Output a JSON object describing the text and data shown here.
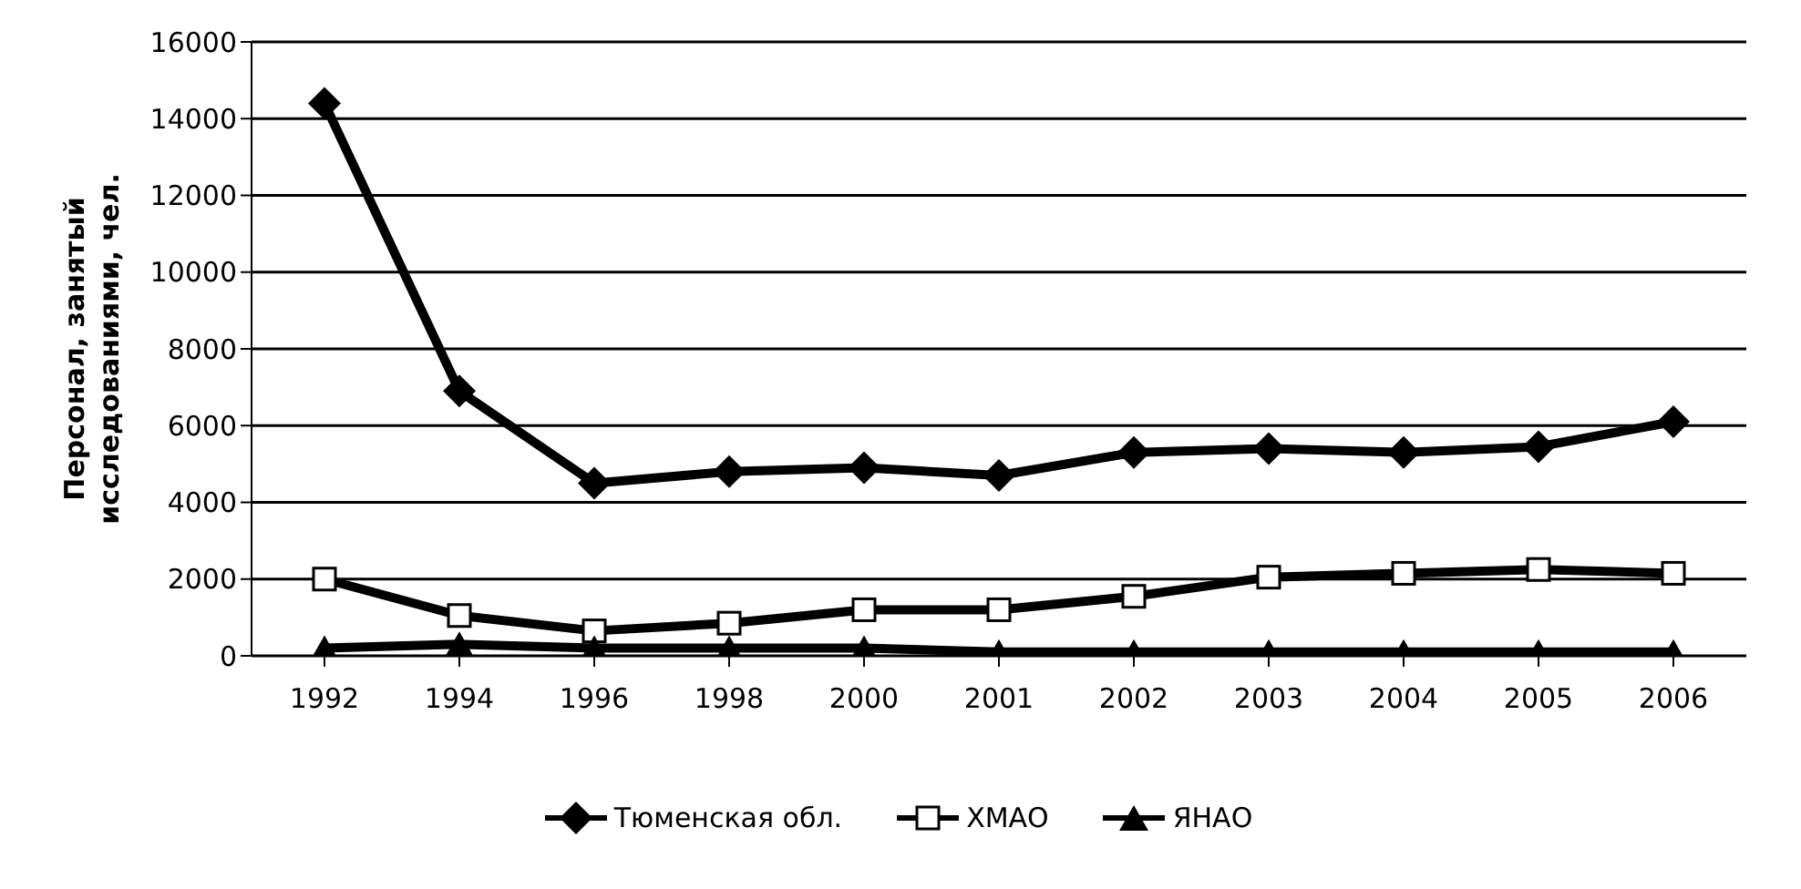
{
  "chart_data": {
    "type": "line",
    "ylabel": "Персонал, занятый исследованиями, чел.",
    "categories": [
      "1992",
      "1994",
      "1996",
      "1998",
      "2000",
      "2001",
      "2002",
      "2003",
      "2004",
      "2005",
      "2006"
    ],
    "ylim": [
      0,
      16000
    ],
    "yticks": [
      0,
      2000,
      4000,
      6000,
      8000,
      10000,
      12000,
      14000,
      16000
    ],
    "grid": "y",
    "legend": "bottom",
    "line_style": "solid",
    "series": [
      {
        "name": "Тюменская обл.",
        "color": "#000000",
        "marker": "diamond",
        "values": [
          14400,
          6900,
          4500,
          4800,
          4900,
          4700,
          5300,
          5400,
          5300,
          5450,
          6100
        ]
      },
      {
        "name": "ХМАО",
        "color": "#000000",
        "marker": "square",
        "values": [
          2000,
          1050,
          650,
          850,
          1200,
          1200,
          1550,
          2050,
          2150,
          2250,
          2150
        ]
      },
      {
        "name": "ЯНАО",
        "color": "#000000",
        "marker": "triangle",
        "values": [
          200,
          300,
          200,
          200,
          200,
          100,
          100,
          100,
          100,
          100,
          100
        ]
      }
    ]
  }
}
